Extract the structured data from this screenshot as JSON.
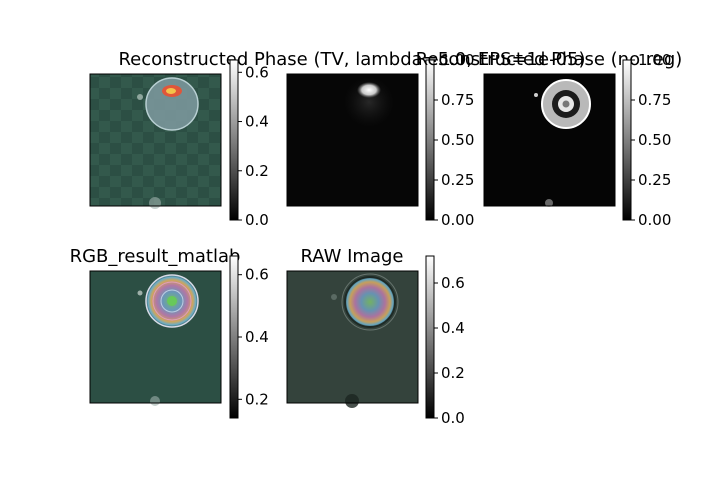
{
  "chart_data": [
    {
      "type": "heatmap",
      "title": "Reconstructed Phase (TV, lambda=5.0, EPS=1e-05)",
      "image_description": "cell",
      "colorbar": {
        "ticks": [
          0.0,
          0.2,
          0.4,
          0.6
        ],
        "tick_labels": [
          "0.0",
          "0.2",
          "0.4",
          "0.6"
        ],
        "range": [
          0.0,
          0.65
        ],
        "colormap": "gray"
      }
    },
    {
      "type": "heatmap",
      "title": "Reconstructed Phase (no reg)",
      "colorbar": {
        "ticks": [
          0.0,
          0.25,
          0.5,
          0.75,
          1.0
        ],
        "tick_labels": [
          "0.00",
          "0.25",
          "0.50",
          "0.75",
          "1.00"
        ],
        "range": [
          0.0,
          1.0
        ],
        "colormap": "gray"
      }
    },
    {
      "type": "heatmap",
      "title": "",
      "colorbar": {
        "ticks": [
          0.0,
          0.25,
          0.5,
          0.75,
          1.0
        ],
        "tick_labels": [
          "0.00",
          "0.25",
          "0.50",
          "0.75",
          "1.00"
        ],
        "range": [
          0.0,
          1.0
        ],
        "colormap": "gray"
      }
    },
    {
      "type": "heatmap",
      "title": "RGB_result_matlab",
      "colorbar": {
        "ticks": [
          0.2,
          0.4,
          0.6
        ],
        "tick_labels": [
          "0.2",
          "0.4",
          "0.6"
        ],
        "range": [
          0.14,
          0.66
        ],
        "colormap": "gray"
      }
    },
    {
      "type": "heatmap",
      "title": "RAW Image",
      "colorbar": {
        "ticks": [
          0.0,
          0.2,
          0.4,
          0.6
        ],
        "tick_labels": [
          "0.0",
          "0.2",
          "0.4",
          "0.6"
        ],
        "range": [
          0.0,
          0.72
        ],
        "colormap": "gray"
      }
    }
  ],
  "colors": {
    "panel_bg_teal": "#2c4f44",
    "panel_bg_raw": "#34433c",
    "phase_bg": "#060606",
    "frame": "#000000"
  }
}
